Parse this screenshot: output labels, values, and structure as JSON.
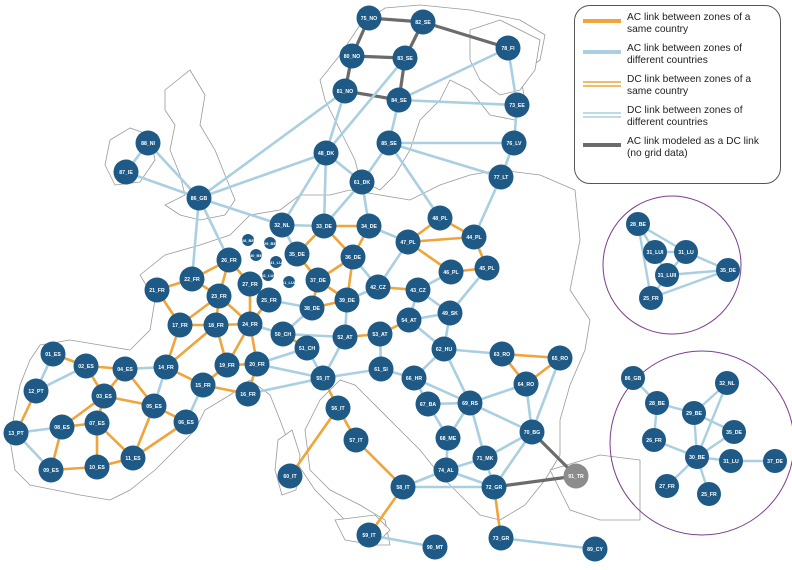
{
  "colors": {
    "ac_same": "#f0a43a",
    "ac_diff": "#a9cfe0",
    "dc_same": "#f0a43a",
    "dc_diff": "#a9cfe0",
    "ac_as_dc": "#6b6b6b",
    "node": "#1e5a85",
    "node_grey": "#8c8c8c",
    "circle_border": "#7a3d8f"
  },
  "legend": [
    {
      "type": "ac_same",
      "label": "AC link between zones of a same country"
    },
    {
      "type": "ac_diff",
      "label": "AC link between zones of different countries"
    },
    {
      "type": "dc_same",
      "label": "DC link between zones of a same country"
    },
    {
      "type": "dc_diff",
      "label": "DC link between zones of different countries"
    },
    {
      "type": "ac_as_dc",
      "label": "AC link modeled as a DC link (no grid data)"
    }
  ],
  "nodes": {
    "75_NO": {
      "label": "75_NO"
    },
    "82_SE": {
      "label": "82_SE"
    },
    "78_FI": {
      "label": "78_FI"
    },
    "80_NO": {
      "label": "80_NO"
    },
    "83_SE": {
      "label": "83_SE"
    },
    "81_NO": {
      "label": "81_NO"
    },
    "84_SE": {
      "label": "84_SE"
    },
    "73_EE": {
      "label": "73_EE"
    },
    "76_LV": {
      "label": "76_LV"
    },
    "85_SE": {
      "label": "85_SE"
    },
    "77_LT": {
      "label": "77_LT"
    },
    "88_NI": {
      "label": "88_NI"
    },
    "87_IE": {
      "label": "87_IE"
    },
    "86_GB": {
      "label": "86_GB"
    },
    "48_DK": {
      "label": "48_DK"
    },
    "61_DK": {
      "label": "61_DK"
    },
    "32_NL": {
      "label": "32_NL"
    },
    "33_DE": {
      "label": "33_DE"
    },
    "34_DE": {
      "label": "34_DE"
    },
    "48_PL": {
      "label": "48_PL"
    },
    "47_PL": {
      "label": "47_PL"
    },
    "44_PL": {
      "label": "44_PL"
    },
    "26_FR": {
      "label": "26_FR"
    },
    "35_DE": {
      "label": "35_DE"
    },
    "36_DE": {
      "label": "36_DE"
    },
    "22_FR": {
      "label": "22_FR"
    },
    "27_FR": {
      "label": "27_FR"
    },
    "37_DE": {
      "label": "37_DE"
    },
    "46_PL": {
      "label": "46_PL"
    },
    "45_PL": {
      "label": "45_PL"
    },
    "21_FR": {
      "label": "21_FR"
    },
    "23_FR": {
      "label": "23_FR"
    },
    "25_FR": {
      "label": "25_FR"
    },
    "38_DE": {
      "label": "38_DE"
    },
    "39_DE": {
      "label": "39_DE"
    },
    "42_CZ": {
      "label": "42_CZ"
    },
    "43_CZ": {
      "label": "43_CZ"
    },
    "17_FR": {
      "label": "17_FR"
    },
    "18_FR": {
      "label": "18_FR"
    },
    "24_FR": {
      "label": "24_FR"
    },
    "50_CH": {
      "label": "50_CH"
    },
    "52_AT": {
      "label": "52_AT"
    },
    "53_AT": {
      "label": "53_AT"
    },
    "54_AT": {
      "label": "54_AT"
    },
    "49_SK": {
      "label": "49_SK"
    },
    "51_CH": {
      "label": "51_CH"
    },
    "62_HU": {
      "label": "62_HU"
    },
    "63_RO": {
      "label": "63_RO"
    },
    "65_RO": {
      "label": "65_RO"
    },
    "01_ES": {
      "label": "01_ES"
    },
    "02_ES": {
      "label": "02_ES"
    },
    "04_ES": {
      "label": "04_ES"
    },
    "14_FR": {
      "label": "14_FR"
    },
    "19_FR": {
      "label": "19_FR"
    },
    "20_FR": {
      "label": "20_FR"
    },
    "55_IT": {
      "label": "55_IT"
    },
    "61_SI": {
      "label": "61_SI"
    },
    "12_PT": {
      "label": "12_PT"
    },
    "03_ES": {
      "label": "03_ES"
    },
    "15_FR": {
      "label": "15_FR"
    },
    "16_FR": {
      "label": "16_FR"
    },
    "66_HR": {
      "label": "66_HR"
    },
    "64_RO": {
      "label": "64_RO"
    },
    "13_PT": {
      "label": "13_PT"
    },
    "08_ES": {
      "label": "08_ES"
    },
    "07_ES": {
      "label": "07_ES"
    },
    "05_ES": {
      "label": "05_ES"
    },
    "06_ES": {
      "label": "06_ES"
    },
    "56_IT": {
      "label": "56_IT"
    },
    "67_BA": {
      "label": "67_BA"
    },
    "69_RS": {
      "label": "69_RS"
    },
    "11_ES": {
      "label": "11_ES"
    },
    "09_ES": {
      "label": "09_ES"
    },
    "10_ES": {
      "label": "10_ES"
    },
    "57_IT": {
      "label": "57_IT"
    },
    "68_ME": {
      "label": "68_ME"
    },
    "70_BG": {
      "label": "70_BG"
    },
    "71_MK": {
      "label": "71_MK"
    },
    "74_AL": {
      "label": "74_AL"
    },
    "60_IT": {
      "label": "60_IT"
    },
    "58_IT": {
      "label": "58_IT"
    },
    "72_GR": {
      "label": "72_GR"
    },
    "91_TR": {
      "label": "91_TR"
    },
    "59_IT": {
      "label": "59_IT"
    },
    "90_MT": {
      "label": "90_MT"
    },
    "73_GR": {
      "label": "73_GR"
    },
    "89_CY": {
      "label": "89_CY"
    },
    "b1": {
      "label": "28_BE"
    },
    "b2": {
      "label": "29_BE"
    },
    "b3": {
      "label": "30_BE"
    },
    "b4": {
      "label": "31_LU"
    },
    "b5": {
      "label": "31_LUI"
    },
    "b6": {
      "label": "31_LUII"
    }
  },
  "inset1": {
    "nodes": [
      {
        "id": "28_BE",
        "label": "28_BE"
      },
      {
        "id": "31_LUI",
        "label": "31_LUI"
      },
      {
        "id": "31_LU",
        "label": "31_LU"
      },
      {
        "id": "31_LUII",
        "label": "31_LUII"
      },
      {
        "id": "35_DE",
        "label": "35_DE"
      },
      {
        "id": "25_FR",
        "label": "25_FR"
      }
    ]
  },
  "inset2": {
    "nodes": [
      {
        "id": "86_GB",
        "label": "86_GB"
      },
      {
        "id": "32_NL",
        "label": "32_NL"
      },
      {
        "id": "28_BE",
        "label": "28_BE"
      },
      {
        "id": "29_BE",
        "label": "29_BE"
      },
      {
        "id": "26_FR",
        "label": "26_FR"
      },
      {
        "id": "35_DE",
        "label": "35_DE"
      },
      {
        "id": "30_BE",
        "label": "30_BE"
      },
      {
        "id": "31_LU",
        "label": "31_LU"
      },
      {
        "id": "37_DE",
        "label": "37_DE"
      },
      {
        "id": "27_FR",
        "label": "27_FR"
      },
      {
        "id": "25_FR",
        "label": "25_FR"
      }
    ]
  }
}
